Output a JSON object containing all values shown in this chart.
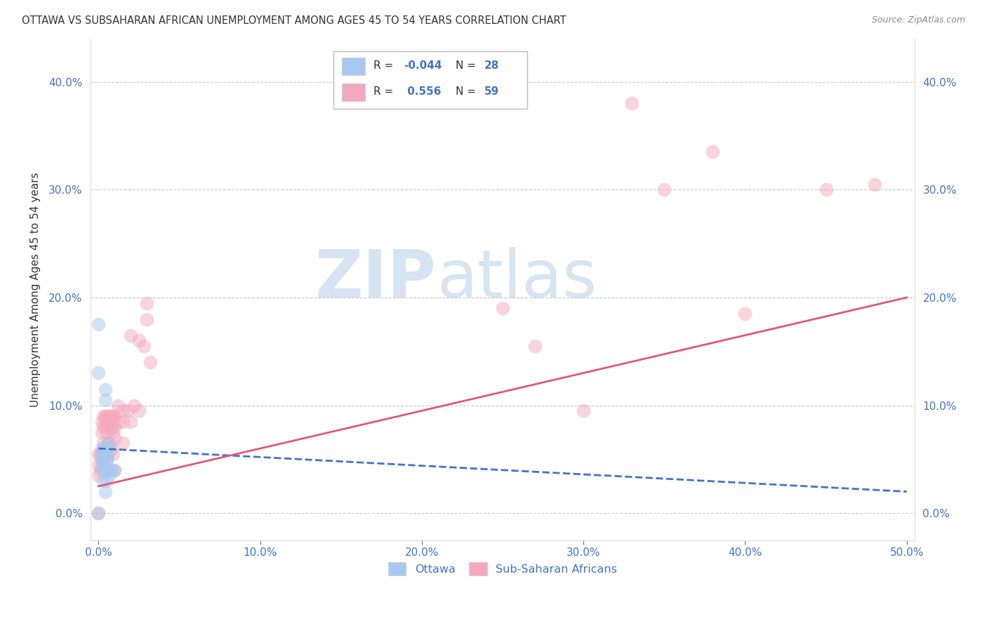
{
  "title": "OTTAWA VS SUBSAHARAN AFRICAN UNEMPLOYMENT AMONG AGES 45 TO 54 YEARS CORRELATION CHART",
  "source": "Source: ZipAtlas.com",
  "ylabel": "Unemployment Among Ages 45 to 54 years",
  "xlabel": "",
  "xlim": [
    -0.005,
    0.505
  ],
  "ylim": [
    -0.025,
    0.44
  ],
  "xticks": [
    0.0,
    0.1,
    0.2,
    0.3,
    0.4,
    0.5
  ],
  "yticks": [
    0.0,
    0.1,
    0.2,
    0.3,
    0.4
  ],
  "legend_r_ottawa": "-0.044",
  "legend_n_ottawa": "28",
  "legend_r_subsaharan": "0.556",
  "legend_n_subsaharan": "59",
  "ottawa_color": "#a8c8f0",
  "subsaharan_color": "#f4a8bc",
  "ottawa_line_color": "#4472c4",
  "subsaharan_line_color": "#e05878",
  "watermark_zip": "ZIP",
  "watermark_atlas": "atlas",
  "dot_size": 200,
  "dot_alpha": 0.5,
  "background_color": "#ffffff",
  "grid_color": "#c8c8c8",
  "ottawa_x": [
    0.0,
    0.0,
    0.0,
    0.002,
    0.002,
    0.002,
    0.003,
    0.003,
    0.003,
    0.003,
    0.003,
    0.003,
    0.004,
    0.004,
    0.004,
    0.004,
    0.005,
    0.005,
    0.005,
    0.005,
    0.005,
    0.006,
    0.006,
    0.006,
    0.007,
    0.007,
    0.008,
    0.01
  ],
  "ottawa_y": [
    0.175,
    0.13,
    0.0,
    0.06,
    0.05,
    0.045,
    0.06,
    0.055,
    0.05,
    0.045,
    0.04,
    0.03,
    0.115,
    0.105,
    0.06,
    0.02,
    0.055,
    0.05,
    0.045,
    0.04,
    0.03,
    0.065,
    0.055,
    0.04,
    0.06,
    0.035,
    0.04,
    0.04
  ],
  "subsaharan_x": [
    0.0,
    0.0,
    0.0,
    0.0,
    0.001,
    0.001,
    0.002,
    0.002,
    0.002,
    0.003,
    0.003,
    0.003,
    0.004,
    0.004,
    0.004,
    0.005,
    0.005,
    0.005,
    0.005,
    0.006,
    0.006,
    0.006,
    0.007,
    0.007,
    0.007,
    0.008,
    0.008,
    0.008,
    0.009,
    0.009,
    0.009,
    0.01,
    0.01,
    0.01,
    0.01,
    0.012,
    0.012,
    0.015,
    0.015,
    0.015,
    0.018,
    0.02,
    0.02,
    0.022,
    0.025,
    0.025,
    0.028,
    0.03,
    0.03,
    0.032,
    0.25,
    0.27,
    0.3,
    0.33,
    0.35,
    0.38,
    0.4,
    0.45,
    0.48
  ],
  "subsaharan_y": [
    0.055,
    0.045,
    0.035,
    0.0,
    0.055,
    0.04,
    0.085,
    0.075,
    0.055,
    0.09,
    0.08,
    0.065,
    0.09,
    0.08,
    0.06,
    0.09,
    0.085,
    0.075,
    0.05,
    0.09,
    0.085,
    0.065,
    0.09,
    0.085,
    0.065,
    0.09,
    0.08,
    0.06,
    0.09,
    0.075,
    0.055,
    0.09,
    0.08,
    0.07,
    0.04,
    0.1,
    0.085,
    0.095,
    0.085,
    0.065,
    0.095,
    0.165,
    0.085,
    0.1,
    0.16,
    0.095,
    0.155,
    0.195,
    0.18,
    0.14,
    0.19,
    0.155,
    0.095,
    0.38,
    0.3,
    0.335,
    0.185,
    0.3,
    0.305
  ],
  "ottawa_trendline_x": [
    0.0,
    0.5
  ],
  "ottawa_trendline_y": [
    0.06,
    0.02
  ],
  "subsaharan_trendline_x": [
    0.0,
    0.5
  ],
  "subsaharan_trendline_y": [
    0.025,
    0.2
  ]
}
